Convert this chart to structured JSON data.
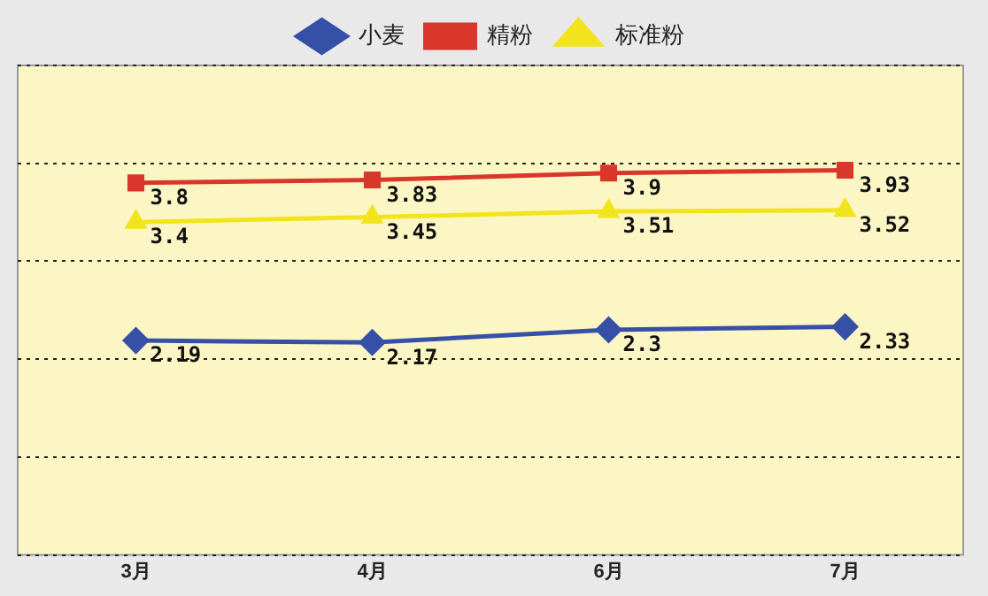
{
  "chart_data": {
    "type": "line",
    "categories": [
      "3月",
      "4月",
      "6月",
      "7月"
    ],
    "series": [
      {
        "name": "小麦",
        "color": "#3650a8",
        "marker": "diamond",
        "values": [
          2.19,
          2.17,
          2.3,
          2.33
        ]
      },
      {
        "name": "精粉",
        "color": "#d9372b",
        "marker": "square",
        "values": [
          3.8,
          3.83,
          3.9,
          3.93
        ]
      },
      {
        "name": "标准粉",
        "color": "#f2e41c",
        "marker": "triangle",
        "values": [
          3.4,
          3.45,
          3.51,
          3.52
        ]
      }
    ],
    "ylim": [
      0,
      5
    ],
    "grid": "y",
    "legend": "top",
    "tick_labels": "x",
    "data_labels": true,
    "line_style": "solid"
  }
}
